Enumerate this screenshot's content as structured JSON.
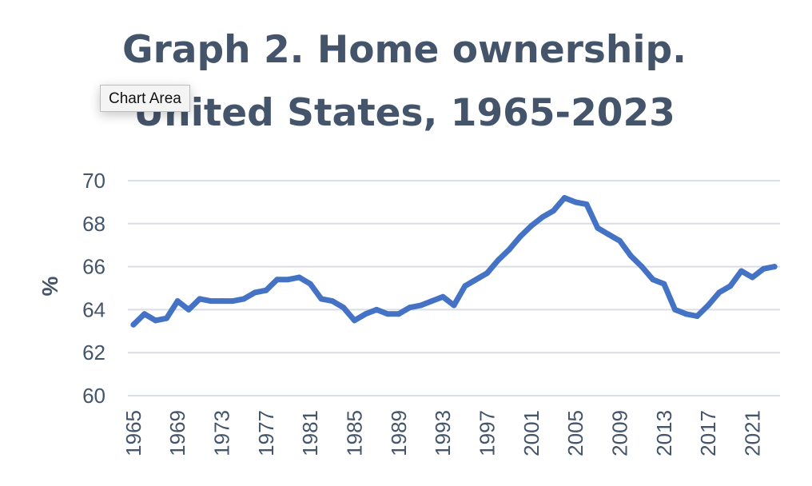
{
  "chart_data": {
    "type": "line",
    "title_lines": [
      "Graph 2. Home ownership.",
      "United States, 1965-2023"
    ],
    "ylabel": "%",
    "xlabel": "",
    "ylim": [
      60,
      70
    ],
    "y_ticks": [
      "60",
      "62",
      "64",
      "66",
      "68",
      "70"
    ],
    "x_tick_labels": [
      "1965",
      "1969",
      "1973",
      "1977",
      "1981",
      "1985",
      "1989",
      "1993",
      "1997",
      "2001",
      "2005",
      "2009",
      "2013",
      "2017",
      "2021"
    ],
    "grid": true,
    "x": [
      1965,
      1966,
      1967,
      1968,
      1969,
      1970,
      1971,
      1972,
      1973,
      1974,
      1975,
      1976,
      1977,
      1978,
      1979,
      1980,
      1981,
      1982,
      1983,
      1984,
      1985,
      1986,
      1987,
      1988,
      1989,
      1990,
      1991,
      1992,
      1993,
      1994,
      1995,
      1996,
      1997,
      1998,
      1999,
      2000,
      2001,
      2002,
      2003,
      2004,
      2005,
      2006,
      2007,
      2008,
      2009,
      2010,
      2011,
      2012,
      2013,
      2014,
      2015,
      2016,
      2017,
      2018,
      2019,
      2020,
      2021,
      2022,
      2023
    ],
    "series": [
      {
        "color": "#4472c4",
        "values": [
          63.3,
          63.8,
          63.5,
          63.6,
          64.4,
          64.0,
          64.5,
          64.4,
          64.4,
          64.4,
          64.5,
          64.8,
          64.9,
          65.4,
          65.4,
          65.5,
          65.2,
          64.5,
          64.4,
          64.1,
          63.5,
          63.8,
          64.0,
          63.8,
          63.8,
          64.1,
          64.2,
          64.4,
          64.6,
          64.2,
          65.1,
          65.4,
          65.7,
          66.3,
          66.8,
          67.4,
          67.9,
          68.3,
          68.6,
          69.2,
          69.0,
          68.9,
          67.8,
          67.5,
          67.2,
          66.5,
          66.0,
          65.4,
          65.2,
          64.0,
          63.8,
          63.7,
          64.2,
          64.8,
          65.1,
          65.8,
          65.5,
          65.9,
          66.0
        ]
      }
    ]
  },
  "overlay": {
    "tooltip_text": "Chart Area"
  }
}
